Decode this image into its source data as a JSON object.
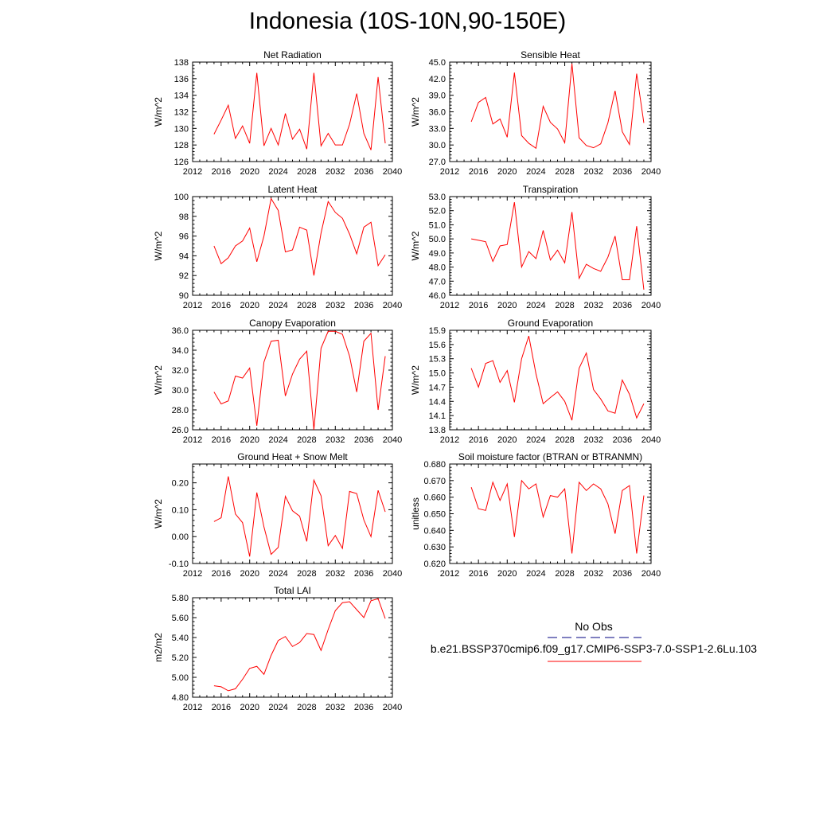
{
  "title": "Indonesia (10S-10N,90-150E)",
  "legend": {
    "obs_label": "No Obs",
    "obs_color": "#000080",
    "model_label": "b.e21.BSSP370cmip6.f09_g17.CMIP6-SSP3-7.0-SSP1-2.6Lu.103",
    "model_color": "#ff0000"
  },
  "chart_data": [
    {
      "type": "line",
      "title": "Net Radiation",
      "ylabel": "W/m^2",
      "xlim": [
        2012,
        2040
      ],
      "ylim": [
        126,
        138
      ],
      "xticks": [
        2012,
        2016,
        2020,
        2024,
        2028,
        2032,
        2036,
        2040
      ],
      "yticks": [
        "126",
        "128",
        "130",
        "132",
        "134",
        "136",
        "138"
      ],
      "x": [
        2015,
        2016,
        2017,
        2018,
        2019,
        2020,
        2021,
        2022,
        2023,
        2024,
        2025,
        2026,
        2027,
        2028,
        2029,
        2030,
        2031,
        2032,
        2033,
        2034,
        2035,
        2036,
        2037,
        2038,
        2039
      ],
      "series": [
        {
          "values": [
            129.3,
            131.0,
            132.8,
            128.8,
            130.3,
            128.2,
            136.7,
            127.9,
            130.0,
            128.0,
            131.8,
            128.7,
            129.9,
            127.5,
            136.7,
            127.9,
            129.4,
            128.0,
            128.0,
            130.5,
            134.2,
            129.4,
            127.4,
            136.2,
            128.2
          ]
        }
      ]
    },
    {
      "type": "line",
      "title": "Sensible Heat",
      "ylabel": "W/m^2",
      "xlim": [
        2012,
        2040
      ],
      "ylim": [
        27.0,
        45.0
      ],
      "xticks": [
        2012,
        2016,
        2020,
        2024,
        2028,
        2032,
        2036,
        2040
      ],
      "yticks": [
        "27.0",
        "30.0",
        "33.0",
        "36.0",
        "39.0",
        "42.0",
        "45.0"
      ],
      "x": [
        2015,
        2016,
        2017,
        2018,
        2019,
        2020,
        2021,
        2022,
        2023,
        2024,
        2025,
        2026,
        2027,
        2028,
        2029,
        2030,
        2031,
        2032,
        2033,
        2034,
        2035,
        2036,
        2037,
        2038,
        2039
      ],
      "series": [
        {
          "values": [
            34.2,
            37.7,
            38.6,
            33.8,
            34.7,
            31.4,
            43.1,
            31.7,
            30.3,
            29.4,
            37.0,
            34.1,
            32.9,
            30.4,
            44.7,
            31.3,
            29.9,
            29.5,
            30.2,
            34.0,
            39.8,
            32.4,
            30.1,
            42.9,
            34.0
          ]
        }
      ]
    },
    {
      "type": "line",
      "title": "Latent Heat",
      "ylabel": "W/m^2",
      "xlim": [
        2012,
        2040
      ],
      "ylim": [
        90,
        100
      ],
      "xticks": [
        2012,
        2016,
        2020,
        2024,
        2028,
        2032,
        2036,
        2040
      ],
      "yticks": [
        "90",
        "92",
        "94",
        "96",
        "98",
        "100"
      ],
      "x": [
        2015,
        2016,
        2017,
        2018,
        2019,
        2020,
        2021,
        2022,
        2023,
        2024,
        2025,
        2026,
        2027,
        2028,
        2029,
        2030,
        2031,
        2032,
        2033,
        2034,
        2035,
        2036,
        2037,
        2038,
        2039
      ],
      "series": [
        {
          "values": [
            95.0,
            93.2,
            93.8,
            95.0,
            95.5,
            96.8,
            93.4,
            96.0,
            99.8,
            98.6,
            94.4,
            94.6,
            96.9,
            96.6,
            92.0,
            96.3,
            99.5,
            98.4,
            97.8,
            96.2,
            94.2,
            96.9,
            97.4,
            93.0,
            94.1
          ]
        }
      ]
    },
    {
      "type": "line",
      "title": "Transpiration",
      "ylabel": "W/m^2",
      "xlim": [
        2012,
        2040
      ],
      "ylim": [
        46.0,
        53.0
      ],
      "xticks": [
        2012,
        2016,
        2020,
        2024,
        2028,
        2032,
        2036,
        2040
      ],
      "yticks": [
        "46.0",
        "47.0",
        "48.0",
        "49.0",
        "50.0",
        "51.0",
        "52.0",
        "53.0"
      ],
      "x": [
        2015,
        2016,
        2017,
        2018,
        2019,
        2020,
        2021,
        2022,
        2023,
        2024,
        2025,
        2026,
        2027,
        2028,
        2029,
        2030,
        2031,
        2032,
        2033,
        2034,
        2035,
        2036,
        2037,
        2038,
        2039
      ],
      "series": [
        {
          "values": [
            50.0,
            49.9,
            49.8,
            48.4,
            49.5,
            49.6,
            52.6,
            48.0,
            49.1,
            48.6,
            50.6,
            48.5,
            49.2,
            48.3,
            51.9,
            47.2,
            48.2,
            47.9,
            47.7,
            48.7,
            50.2,
            47.1,
            47.1,
            50.9,
            46.4
          ]
        }
      ]
    },
    {
      "type": "line",
      "title": "Canopy Evaporation",
      "ylabel": "W/m^2",
      "xlim": [
        2012,
        2040
      ],
      "ylim": [
        26.0,
        36.0
      ],
      "xticks": [
        2012,
        2016,
        2020,
        2024,
        2028,
        2032,
        2036,
        2040
      ],
      "yticks": [
        "26.0",
        "28.0",
        "30.0",
        "32.0",
        "34.0",
        "36.0"
      ],
      "x": [
        2015,
        2016,
        2017,
        2018,
        2019,
        2020,
        2021,
        2022,
        2023,
        2024,
        2025,
        2026,
        2027,
        2028,
        2029,
        2030,
        2031,
        2032,
        2033,
        2034,
        2035,
        2036,
        2037,
        2038,
        2039
      ],
      "series": [
        {
          "values": [
            29.8,
            28.6,
            28.9,
            31.4,
            31.2,
            32.2,
            26.4,
            32.8,
            34.9,
            35.0,
            29.4,
            31.6,
            33.1,
            33.9,
            26.0,
            34.2,
            35.9,
            35.9,
            35.6,
            33.4,
            29.8,
            34.9,
            35.7,
            28.0,
            33.4
          ]
        }
      ]
    },
    {
      "type": "line",
      "title": "Ground Evaporation",
      "ylabel": "W/m^2",
      "xlim": [
        2012,
        2040
      ],
      "ylim": [
        13.8,
        15.9
      ],
      "xticks": [
        2012,
        2016,
        2020,
        2024,
        2028,
        2032,
        2036,
        2040
      ],
      "yticks": [
        "13.8",
        "14.1",
        "14.4",
        "14.7",
        "15.0",
        "15.3",
        "15.6",
        "15.9"
      ],
      "x": [
        2015,
        2016,
        2017,
        2018,
        2019,
        2020,
        2021,
        2022,
        2023,
        2024,
        2025,
        2026,
        2027,
        2028,
        2029,
        2030,
        2031,
        2032,
        2033,
        2034,
        2035,
        2036,
        2037,
        2038,
        2039
      ],
      "series": [
        {
          "values": [
            15.1,
            14.7,
            15.2,
            15.26,
            14.8,
            15.05,
            14.38,
            15.3,
            15.78,
            14.98,
            14.35,
            14.48,
            14.6,
            14.4,
            14.0,
            15.1,
            15.42,
            14.65,
            14.45,
            14.2,
            14.15,
            14.85,
            14.55,
            14.05,
            14.35
          ]
        }
      ]
    },
    {
      "type": "line",
      "title": "Ground Heat + Snow Melt",
      "ylabel": "W/m^2",
      "xlim": [
        2012,
        2040
      ],
      "ylim": [
        -0.1,
        0.27
      ],
      "xticks": [
        2012,
        2016,
        2020,
        2024,
        2028,
        2032,
        2036,
        2040
      ],
      "yticks": [
        "-0.10",
        "0.00",
        "0.10",
        "0.20"
      ],
      "x": [
        2015,
        2016,
        2017,
        2018,
        2019,
        2020,
        2021,
        2022,
        2023,
        2024,
        2025,
        2026,
        2027,
        2028,
        2029,
        2030,
        2031,
        2032,
        2033,
        2034,
        2035,
        2036,
        2037,
        2038,
        2039
      ],
      "series": [
        {
          "values": [
            0.056,
            0.07,
            0.224,
            0.084,
            0.052,
            -0.074,
            0.164,
            0.036,
            -0.066,
            -0.04,
            0.15,
            0.096,
            0.076,
            -0.018,
            0.21,
            0.152,
            -0.034,
            0.004,
            -0.044,
            0.168,
            0.16,
            0.062,
            0.0,
            0.172,
            0.092
          ]
        }
      ]
    },
    {
      "type": "line",
      "title": "Soil moisture factor (BTRAN or BTRANMN)",
      "ylabel": "unitless",
      "xlim": [
        2012,
        2040
      ],
      "ylim": [
        0.62,
        0.68
      ],
      "xticks": [
        2012,
        2016,
        2020,
        2024,
        2028,
        2032,
        2036,
        2040
      ],
      "yticks": [
        "0.620",
        "0.630",
        "0.640",
        "0.650",
        "0.660",
        "0.670",
        "0.680"
      ],
      "x": [
        2015,
        2016,
        2017,
        2018,
        2019,
        2020,
        2021,
        2022,
        2023,
        2024,
        2025,
        2026,
        2027,
        2028,
        2029,
        2030,
        2031,
        2032,
        2033,
        2034,
        2035,
        2036,
        2037,
        2038,
        2039
      ],
      "series": [
        {
          "values": [
            0.666,
            0.653,
            0.652,
            0.669,
            0.658,
            0.668,
            0.636,
            0.67,
            0.665,
            0.668,
            0.648,
            0.661,
            0.66,
            0.665,
            0.626,
            0.669,
            0.664,
            0.668,
            0.665,
            0.656,
            0.638,
            0.664,
            0.667,
            0.626,
            0.661
          ]
        }
      ]
    },
    {
      "type": "line",
      "title": "Total LAI",
      "ylabel": "m2/m2",
      "xlim": [
        2012,
        2040
      ],
      "ylim": [
        4.8,
        5.8
      ],
      "xticks": [
        2012,
        2016,
        2020,
        2024,
        2028,
        2032,
        2036,
        2040
      ],
      "yticks": [
        "4.80",
        "5.00",
        "5.20",
        "5.40",
        "5.60",
        "5.80"
      ],
      "x": [
        2015,
        2016,
        2017,
        2018,
        2019,
        2020,
        2021,
        2022,
        2023,
        2024,
        2025,
        2026,
        2027,
        2028,
        2029,
        2030,
        2031,
        2032,
        2033,
        2034,
        2035,
        2036,
        2037,
        2038,
        2039
      ],
      "series": [
        {
          "values": [
            4.915,
            4.905,
            4.865,
            4.885,
            4.98,
            5.09,
            5.11,
            5.03,
            5.22,
            5.37,
            5.41,
            5.31,
            5.35,
            5.44,
            5.43,
            5.27,
            5.48,
            5.67,
            5.75,
            5.76,
            5.68,
            5.6,
            5.77,
            5.79,
            5.59
          ]
        }
      ]
    }
  ]
}
